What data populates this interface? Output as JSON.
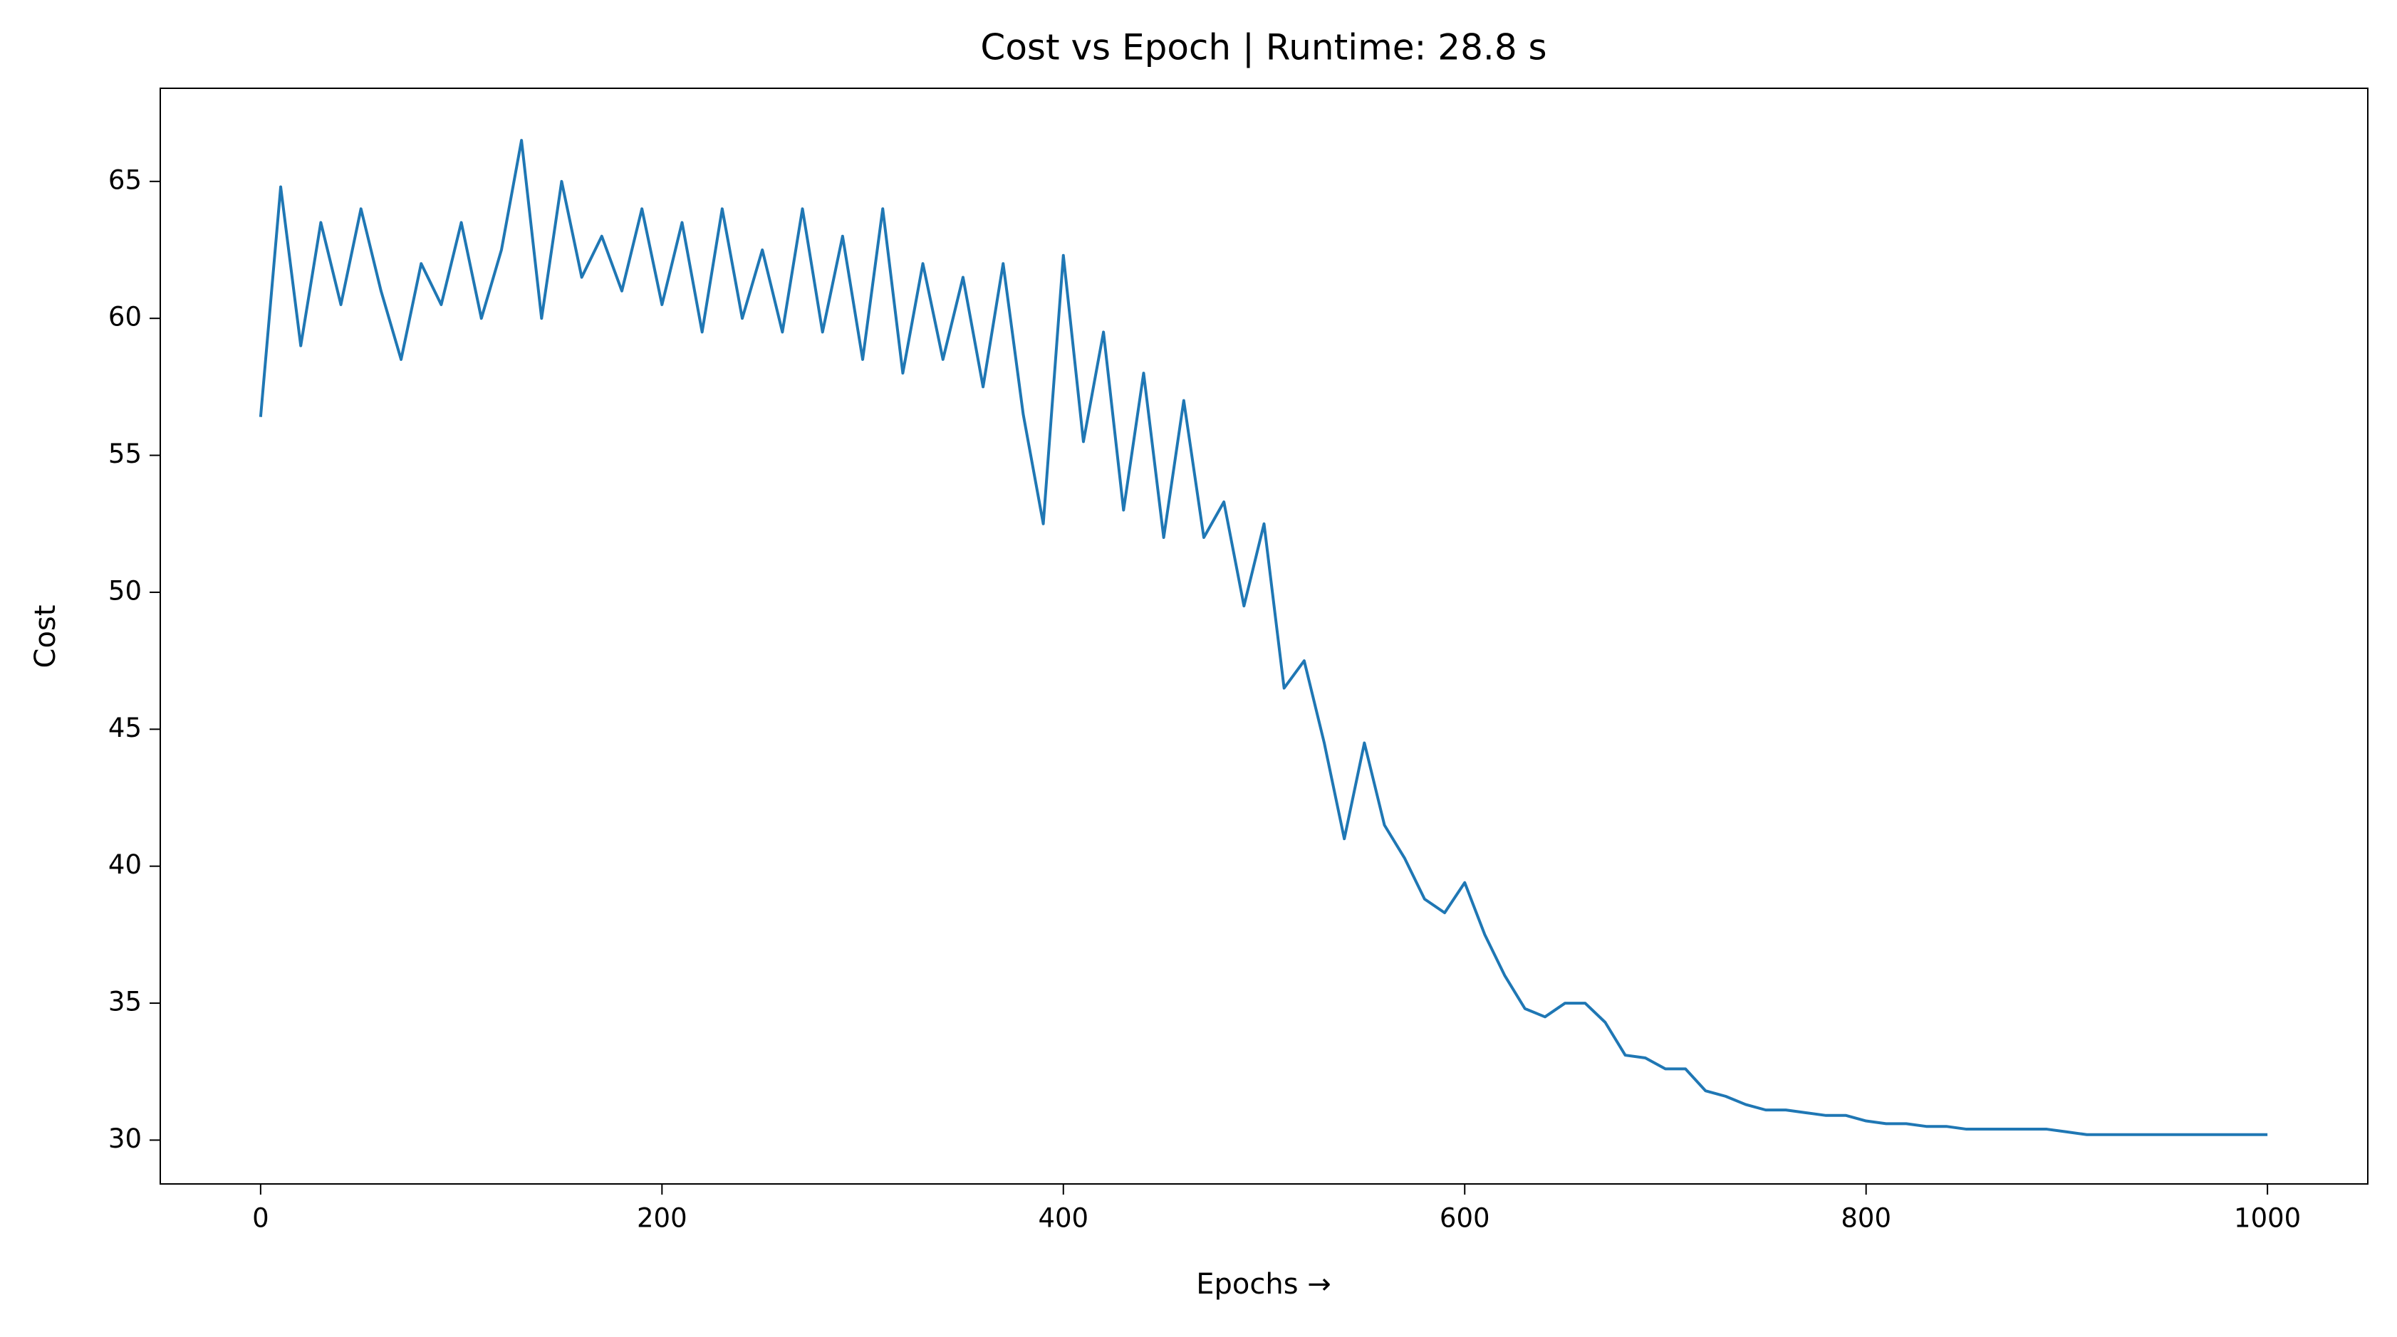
{
  "chart_data": {
    "type": "line",
    "title": "Cost vs Epoch | Runtime: 28.8 s",
    "xlabel": "Epochs  →",
    "ylabel": "Cost",
    "x": [
      0,
      10,
      20,
      30,
      40,
      50,
      60,
      70,
      80,
      90,
      100,
      110,
      120,
      130,
      140,
      150,
      160,
      170,
      180,
      190,
      200,
      210,
      220,
      230,
      240,
      250,
      260,
      270,
      280,
      290,
      300,
      310,
      320,
      330,
      340,
      350,
      360,
      370,
      380,
      390,
      400,
      410,
      420,
      430,
      440,
      450,
      460,
      470,
      480,
      490,
      500,
      510,
      520,
      530,
      540,
      550,
      560,
      570,
      580,
      590,
      600,
      610,
      620,
      630,
      640,
      650,
      660,
      670,
      680,
      690,
      700,
      710,
      720,
      730,
      740,
      750,
      760,
      770,
      780,
      790,
      800,
      810,
      820,
      830,
      840,
      850,
      860,
      870,
      880,
      890,
      900,
      910,
      920,
      930,
      940,
      950,
      960,
      970,
      980,
      990,
      1000
    ],
    "series": [
      {
        "name": "Cost",
        "color": "#1f77b4",
        "values": [
          56.4,
          64.8,
          59,
          63.5,
          60.5,
          64,
          61,
          58.5,
          62,
          60.5,
          63.5,
          60,
          62.5,
          66.5,
          60,
          65,
          61.5,
          63,
          61,
          64,
          60.5,
          63.5,
          59.5,
          64,
          60,
          62.5,
          59.5,
          64,
          59.5,
          63,
          58.5,
          64,
          58,
          62,
          58.5,
          61.5,
          57.5,
          62,
          56.5,
          52.5,
          62.3,
          55.5,
          59.5,
          53,
          58,
          52,
          57,
          52,
          53.3,
          49.5,
          52.5,
          46.5,
          47.5,
          44.5,
          41,
          44.5,
          41.5,
          40.3,
          38.8,
          38.3,
          39.4,
          37.5,
          36,
          34.8,
          34.5,
          35,
          35,
          34.3,
          33.1,
          33,
          32.6,
          32.6,
          31.8,
          31.6,
          31.3,
          31.1,
          31.1,
          31,
          30.9,
          30.9,
          30.7,
          30.6,
          30.6,
          30.5,
          30.5,
          30.4,
          30.4,
          30.4,
          30.4,
          30.4,
          30.3,
          30.2,
          30.2,
          30.2,
          30.2,
          30.2,
          30.2,
          30.2,
          30.2,
          30.2,
          30.2
        ]
      }
    ],
    "xlim": [
      -50,
      1050
    ],
    "ylim": [
      28.4,
      68.4
    ],
    "xticks": [
      0,
      200,
      400,
      600,
      800,
      1000
    ],
    "yticks": [
      30,
      35,
      40,
      45,
      50,
      55,
      60,
      65
    ]
  }
}
